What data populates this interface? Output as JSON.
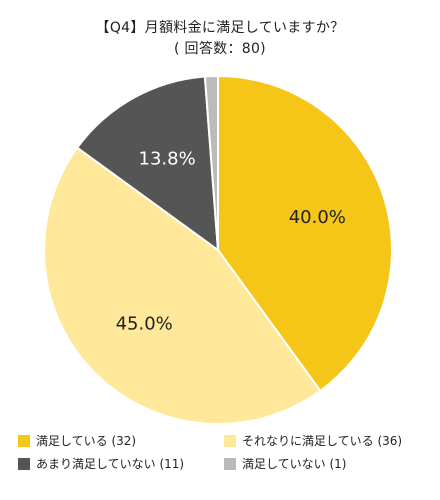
{
  "title": "【Q4】月額料金に満足していますか？",
  "subtitle": "( 回答数：80)",
  "chart_data": {
    "type": "pie",
    "start_angle_deg": 0,
    "direction": "clockwise",
    "categories": [
      "満足している",
      "それなりに満足している",
      "あまり満足していない",
      "満足していない"
    ],
    "counts": [
      32,
      36,
      11,
      1
    ],
    "values": [
      40.0,
      45.0,
      13.8,
      1.2
    ],
    "data_labels": [
      "40.0%",
      "45.0%",
      "13.8%",
      ""
    ],
    "legend_labels": [
      "満足している (32)",
      "それなりに満足している (36)",
      "あまり満足していない (11)",
      "満足していない (1)"
    ],
    "colors": [
      "#F5C518",
      "#FFE89A",
      "#555555",
      "#BBBBBB"
    ],
    "label_colors": [
      "#222222",
      "#222222",
      "#ffffff",
      "#222222"
    ],
    "legend_placement": "bottom"
  }
}
